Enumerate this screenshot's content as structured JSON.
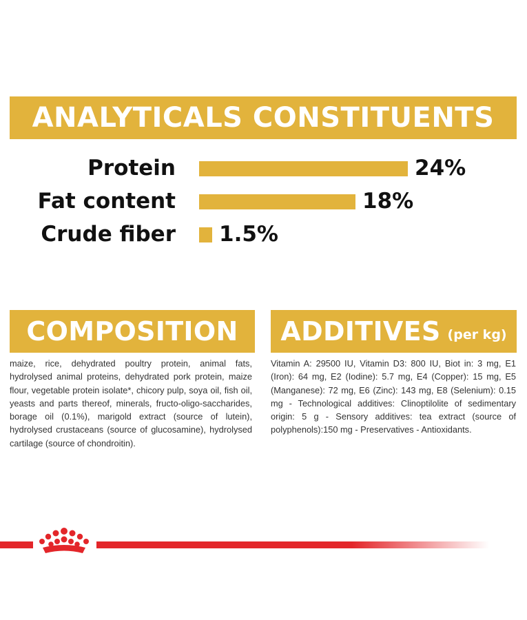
{
  "analytics": {
    "title": "ANALYTICALS CONSTITUENTS"
  },
  "chart_data": {
    "type": "bar",
    "orientation": "horizontal",
    "title": "ANALYTICALS CONSTITUENTS",
    "categories": [
      "Protein",
      "Fat content",
      "Crude fiber"
    ],
    "values": [
      24,
      18,
      1.5
    ],
    "value_labels": [
      "24%",
      "18%",
      "1.5%"
    ],
    "unit": "%",
    "xlim": [
      0,
      24
    ],
    "bar_color": "#e2b33c",
    "grid": false
  },
  "composition": {
    "title": "COMPOSITION",
    "text": "maize, rice, dehydrated poultry protein, animal fats, hydrolysed animal proteins, dehydrated pork protein, maize flour, vegetable protein isolate*, chicory pulp, soya oil, fish oil, yeasts and parts thereof, minerals, fructo-oligo-saccharides, borage oil (0.1%), marigold extract (source of lutein), hydrolysed crustaceans (source of glucosamine), hydrolysed cartilage (source of chondroitin)."
  },
  "additives": {
    "title": "ADDITIVES",
    "subtitle": "(per kg)",
    "text": "Vitamin A: 29500 IU, Vitamin D3: 800 IU, Biot in: 3 mg, E1 (Iron): 64 mg, E2 (Iodine): 5.7 mg, E4 (Copper): 15 mg, E5 (Manganese): 72 mg, E6 (Zinc): 143 mg, E8 (Selenium): 0.15 mg - Technological additives: Clinoptilolite of sedimentary origin: 5 g - Sensory additives: tea extract (source of polyphenols):150 mg - Preservatives - Antioxidants."
  },
  "colors": {
    "accent": "#e2b33c",
    "brand_red": "#e3262a"
  },
  "footer": {
    "logo_icon": "crown-logo-icon"
  }
}
